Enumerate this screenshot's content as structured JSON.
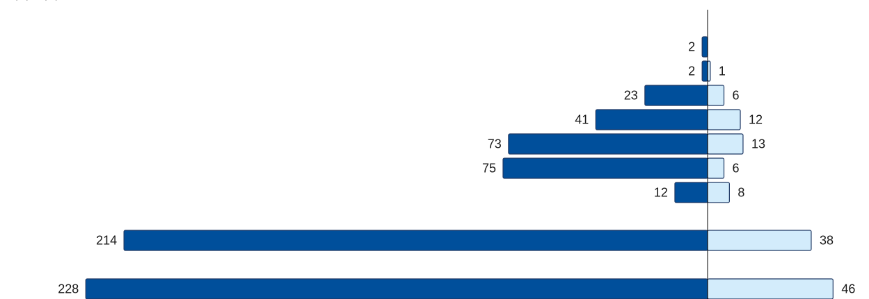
{
  "chart_data": {
    "type": "bar",
    "orientation": "horizontal-diverging",
    "header_text": "… (…) … (…)",
    "series": [
      {
        "name": "",
        "color": "#004F9B",
        "side": "left",
        "values": [
          2,
          2,
          23,
          41,
          73,
          75,
          12,
          214,
          228
        ]
      },
      {
        "name": "",
        "color": "#D3ECFB",
        "side": "right",
        "values": [
          null,
          1,
          6,
          12,
          13,
          6,
          8,
          38,
          46
        ]
      }
    ],
    "bar_outline_color": "#1F3864",
    "axis_color": "#000000",
    "grid": false,
    "legend": "none"
  }
}
